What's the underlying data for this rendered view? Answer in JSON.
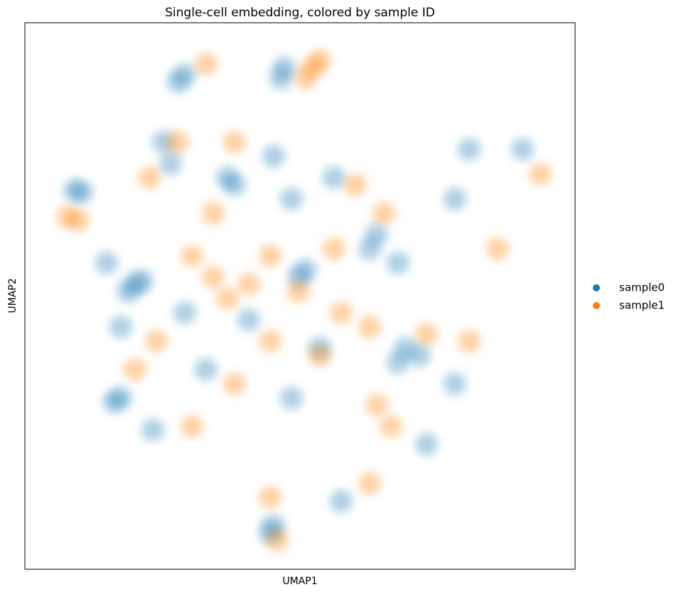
{
  "chart_data": {
    "type": "scatter",
    "title": "Single-cell embedding, colored by sample ID",
    "x_label": "UMAP1",
    "y_label": "UMAP2",
    "xlim": [
      0,
      774
    ],
    "ylim": [
      0,
      769
    ],
    "legend": "right",
    "series": [
      {
        "name": "sample0",
        "color": "#1f77b4",
        "x": [
          365,
          360,
          225,
          215,
          80,
          70,
          195,
          205,
          155,
          145,
          165,
          135,
          295,
          285,
          350,
          375,
          435,
          495,
          485,
          395,
          385,
          535,
          555,
          525,
          605,
          565,
          415,
          255,
          135,
          125,
          180,
          345,
          350,
          445,
          375,
          700,
          625,
          115,
          605,
          525,
          225,
          315
        ],
        "values": [
          706,
          691,
          696,
          686,
          531,
          533,
          601,
          571,
          401,
          391,
          406,
          341,
          541,
          551,
          581,
          521,
          551,
          471,
          451,
          421,
          411,
          311,
          301,
          291,
          261,
          176,
          311,
          281,
          241,
          236,
          196,
          51,
          61,
          96,
          241,
          591,
          591,
          431,
          521,
          431,
          361,
          351
        ]
      },
      {
        "name": "sample1",
        "color": "#ff7f0e",
        "x": [
          405,
          415,
          395,
          255,
          60,
          75,
          725,
          235,
          265,
          285,
          315,
          345,
          385,
          445,
          485,
          565,
          625,
          295,
          215,
          495,
          515,
          485,
          415,
          345,
          185,
          155,
          345,
          355,
          235,
          665,
          295,
          435,
          505,
          175,
          265,
          465
        ],
        "values": [
          706,
          716,
          691,
          711,
          496,
          491,
          556,
          441,
          411,
          381,
          401,
          441,
          391,
          361,
          341,
          331,
          321,
          601,
          601,
          231,
          201,
          121,
          301,
          321,
          321,
          281,
          101,
          41,
          201,
          451,
          261,
          451,
          501,
          551,
          501,
          541
        ]
      }
    ]
  }
}
